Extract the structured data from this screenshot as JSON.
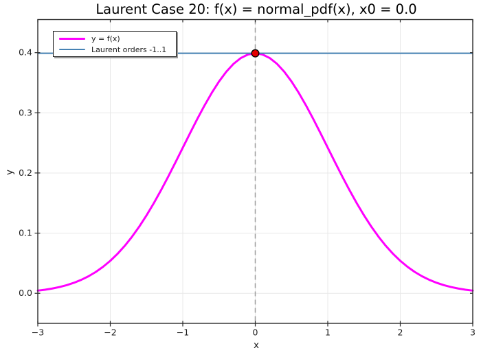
{
  "figure": {
    "background": "#ffffff"
  },
  "chart_data": {
    "type": "line",
    "title": "Laurent Case 20: f(x) = normal_pdf(x), x0 = 0.0",
    "xlabel": "x",
    "ylabel": "y",
    "xlim": [
      -3,
      3
    ],
    "ylim": [
      -0.05,
      0.455
    ],
    "xticks": [
      -3,
      -2,
      -1,
      0,
      1,
      2,
      3
    ],
    "xtick_labels": [
      "−3",
      "−2",
      "−1",
      "0",
      "1",
      "2",
      "3"
    ],
    "yticks": [
      0.0,
      0.1,
      0.2,
      0.3,
      0.4
    ],
    "ytick_labels": [
      "0.0",
      "0.1",
      "0.2",
      "0.3",
      "0.4"
    ],
    "grid": true,
    "grid_color": "#e8e8e8",
    "spine_color": "#2a2a2a",
    "legend_position": "upper left",
    "series": [
      {
        "name": "y = f(x)",
        "color": "#ff00ff",
        "width": 3,
        "style": "solid",
        "x": [
          -3.0,
          -2.9,
          -2.8,
          -2.7,
          -2.6,
          -2.5,
          -2.4,
          -2.3,
          -2.2,
          -2.1,
          -2.0,
          -1.9,
          -1.8,
          -1.7,
          -1.6,
          -1.5,
          -1.4,
          -1.3,
          -1.2,
          -1.1,
          -1.0,
          -0.9,
          -0.8,
          -0.7,
          -0.6,
          -0.5,
          -0.4,
          -0.3,
          -0.2,
          -0.1,
          0.0,
          0.1,
          0.2,
          0.3,
          0.4,
          0.5,
          0.6,
          0.7,
          0.8,
          0.9,
          1.0,
          1.1,
          1.2,
          1.3,
          1.4,
          1.5,
          1.6,
          1.7,
          1.8,
          1.9,
          2.0,
          2.1,
          2.2,
          2.3,
          2.4,
          2.5,
          2.6,
          2.7,
          2.8,
          2.9,
          3.0
        ],
        "y": [
          0.00443,
          0.00595,
          0.00792,
          0.01042,
          0.01358,
          0.01753,
          0.02239,
          0.02833,
          0.03547,
          0.04398,
          0.05399,
          0.06562,
          0.07895,
          0.09405,
          0.11092,
          0.12952,
          0.14973,
          0.17137,
          0.19419,
          0.21785,
          0.24197,
          0.26609,
          0.28969,
          0.31225,
          0.33322,
          0.35207,
          0.36827,
          0.38139,
          0.39104,
          0.39695,
          0.39894,
          0.39695,
          0.39104,
          0.38139,
          0.36827,
          0.35207,
          0.33322,
          0.31225,
          0.28969,
          0.26609,
          0.24197,
          0.21785,
          0.19419,
          0.17137,
          0.14973,
          0.12952,
          0.11092,
          0.09405,
          0.07895,
          0.06562,
          0.05399,
          0.04398,
          0.03547,
          0.02833,
          0.02239,
          0.01753,
          0.01358,
          0.01042,
          0.00792,
          0.00595,
          0.00443
        ]
      },
      {
        "name": "Laurent orders -1..1",
        "color": "#4682b4",
        "width": 2,
        "style": "solid",
        "constant": 0.39894
      }
    ],
    "vline": {
      "x": 0,
      "color": "#9e9e9e",
      "style": "dashed",
      "width": 1.5
    },
    "marker": {
      "x": 0.0,
      "y": 0.39894,
      "fill": "#e60000",
      "edge": "#000000",
      "radius": 5.3
    }
  },
  "legend": {
    "entries": [
      {
        "label": "y = f(x)",
        "color": "#ff00ff",
        "thickness": 3
      },
      {
        "label": "Laurent orders -1..1",
        "color": "#4682b4",
        "thickness": 2
      }
    ]
  }
}
